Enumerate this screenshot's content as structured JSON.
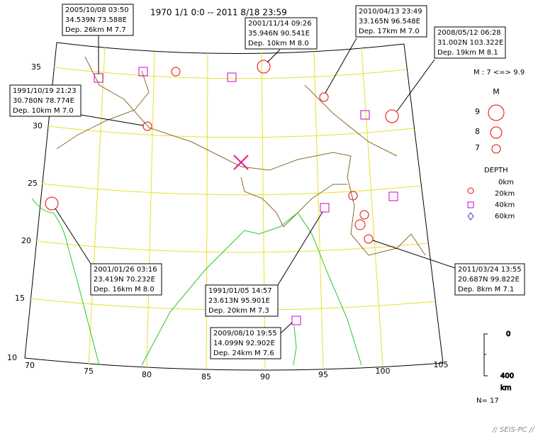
{
  "header": {
    "title": "1970 1/1 0:0 -- 2011 8/18 23:59"
  },
  "callouts": [
    {
      "lines": [
        "2005/10/08 03:50",
        "34.539N  73.588E",
        "Dep. 26km   M 7.7"
      ]
    },
    {
      "lines": [
        "2001/11/14 09:26",
        "35.946N  90.541E",
        "Dep. 10km   M 8.0"
      ]
    },
    {
      "lines": [
        "2010/04/13 23:49",
        "33.165N  96.548E",
        "Dep. 17km   M 7.0"
      ]
    },
    {
      "lines": [
        "2008/05/12 06:28",
        "31.002N  103.322E",
        "Dep. 19km   M 8.1"
      ]
    },
    {
      "lines": [
        "1991/10/19 21:23",
        "30.780N  78.774E",
        "Dep. 10km   M 7.0"
      ]
    },
    {
      "lines": [
        "2001/01/26 03:16",
        "23.419N  70.232E",
        "Dep. 16km   M 8.0"
      ]
    },
    {
      "lines": [
        "1991/01/05 14:57",
        "23.613N  95.901E",
        "Dep. 20km   M 7.3"
      ]
    },
    {
      "lines": [
        "2009/08/10 19:55",
        "14.099N  92.902E",
        "Dep. 24km   M 7.6"
      ]
    },
    {
      "lines": [
        "2011/03/24 13:55",
        "20.687N  99.822E",
        "Dep. 8km   M 7.1"
      ]
    }
  ],
  "lat_labels": [
    "35",
    "30",
    "25",
    "20",
    "15",
    "10"
  ],
  "lon_labels": [
    "70",
    "75",
    "80",
    "85",
    "90",
    "95",
    "100",
    "105"
  ],
  "legend": {
    "magnitude_range": "M : 7 <=> 9.9",
    "m_title": "M",
    "m_sizes": [
      "9",
      "8",
      "7"
    ],
    "depth_title": "DEPTH",
    "depths": [
      "0km",
      "20km",
      "40km",
      "60km"
    ]
  },
  "depth_scale": {
    "top": "0",
    "bottom": "400",
    "unit": "km"
  },
  "count": "N= 17",
  "footer": "// SEIS-PC //"
}
